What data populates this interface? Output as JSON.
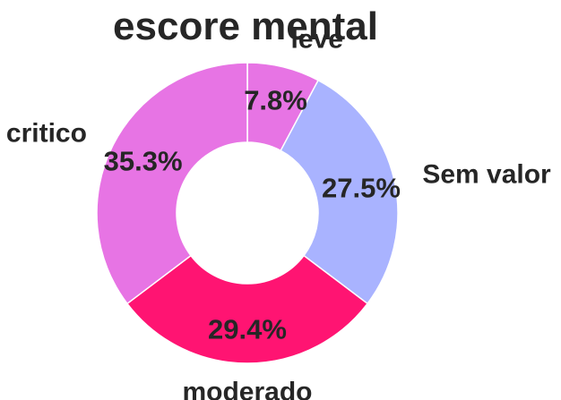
{
  "chart_data": {
    "type": "pie",
    "variant": "donut",
    "title": "escore mental",
    "categories": [
      "leve",
      "Sem valor",
      "moderado",
      "critico"
    ],
    "values": [
      7.8,
      27.5,
      29.4,
      35.3
    ],
    "value_labels": [
      "7.8%",
      "27.5%",
      "29.4%",
      "35.3%"
    ],
    "colors": [
      "#e774e4",
      "#a9b3ff",
      "#ff1472",
      "#e774e4"
    ],
    "start_angle_deg": 90,
    "direction": "clockwise",
    "legend": "none"
  }
}
